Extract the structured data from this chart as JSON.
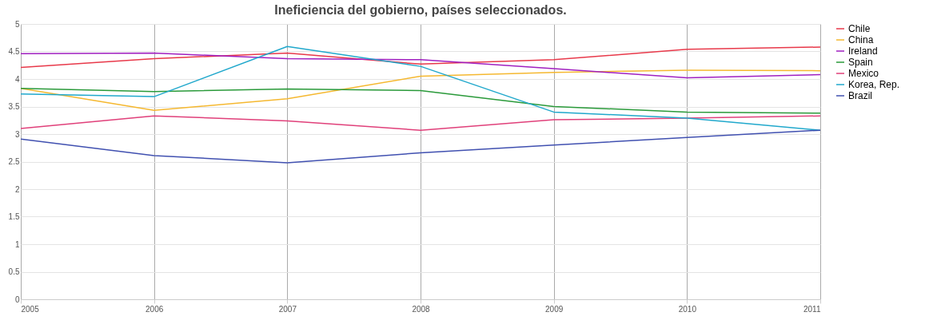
{
  "chart_data": {
    "type": "line",
    "title": "Ineficiencia del gobierno, países seleccionados.",
    "x": [
      2005,
      2006,
      2007,
      2008,
      2009,
      2010,
      2011
    ],
    "xlim": [
      2005,
      2011
    ],
    "xticks": [
      2005,
      2006,
      2007,
      2008,
      2009,
      2010,
      2011
    ],
    "ylim": [
      0,
      5
    ],
    "yticks": [
      0,
      0.5,
      1,
      1.5,
      2,
      2.5,
      3,
      3.5,
      4,
      4.5,
      5
    ],
    "grid": true,
    "legend": "right",
    "series": [
      {
        "name": "Chile",
        "color": "#e8394a",
        "values": [
          4.21,
          4.37,
          4.47,
          4.27,
          4.35,
          4.54,
          4.58
        ]
      },
      {
        "name": "China",
        "color": "#f5b830",
        "values": [
          3.83,
          3.43,
          3.64,
          4.05,
          4.12,
          4.16,
          4.15
        ]
      },
      {
        "name": "Ireland",
        "color": "#a020c0",
        "values": [
          4.46,
          4.47,
          4.37,
          4.35,
          4.19,
          4.02,
          4.08
        ]
      },
      {
        "name": "Spain",
        "color": "#2a9a3a",
        "values": [
          3.83,
          3.77,
          3.82,
          3.79,
          3.5,
          3.4,
          3.38
        ]
      },
      {
        "name": "Mexico",
        "color": "#e0407a",
        "values": [
          3.1,
          3.33,
          3.24,
          3.07,
          3.26,
          3.29,
          3.33
        ]
      },
      {
        "name": "Korea, Rep.",
        "color": "#20a8cc",
        "values": [
          3.73,
          3.68,
          4.59,
          4.23,
          3.4,
          3.29,
          3.07
        ]
      },
      {
        "name": "Brazil",
        "color": "#4050b0",
        "values": [
          2.91,
          2.61,
          2.48,
          2.66,
          2.8,
          2.94,
          3.07
        ]
      }
    ]
  }
}
